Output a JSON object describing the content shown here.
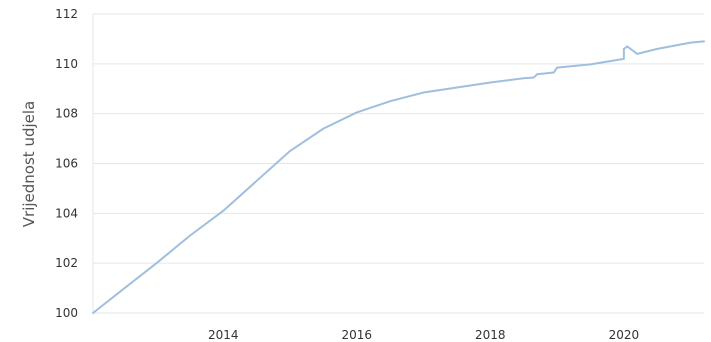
{
  "chart_data": {
    "type": "line",
    "title": "",
    "xlabel": "",
    "ylabel": "Vrijednost udjela",
    "xlim": [
      2012.05,
      2021.2
    ],
    "ylim": [
      100,
      112
    ],
    "x_ticks": [
      2014,
      2016,
      2018,
      2020
    ],
    "x_tick_labels": [
      "2014",
      "2016",
      "2018",
      "2020"
    ],
    "y_ticks": [
      100,
      102,
      104,
      106,
      108,
      110,
      112
    ],
    "y_tick_labels": [
      "100",
      "102",
      "104",
      "106",
      "108",
      "110",
      "112"
    ],
    "grid": true,
    "legend": "none",
    "colors": {
      "series": "#9fbfdf",
      "grid": "#e6e6e6",
      "axis_text": "#333333"
    },
    "series": [
      {
        "x": [
          2012.05,
          2012.5,
          2013.0,
          2013.5,
          2014.0,
          2014.5,
          2015.0,
          2015.5,
          2016.0,
          2016.5,
          2017.0,
          2017.5,
          2018.0,
          2018.5,
          2018.65,
          2018.7,
          2018.95,
          2019.0,
          2019.5,
          2020.0,
          2020.0,
          2020.05,
          2020.15,
          2020.2,
          2020.5,
          2021.0,
          2021.2
        ],
        "y": [
          100.0,
          100.95,
          102.0,
          103.1,
          104.1,
          105.3,
          106.5,
          107.4,
          108.05,
          108.5,
          108.85,
          109.05,
          109.25,
          109.42,
          109.45,
          109.58,
          109.65,
          109.85,
          109.98,
          110.2,
          110.6,
          110.7,
          110.5,
          110.4,
          110.6,
          110.85,
          110.9
        ]
      }
    ]
  }
}
